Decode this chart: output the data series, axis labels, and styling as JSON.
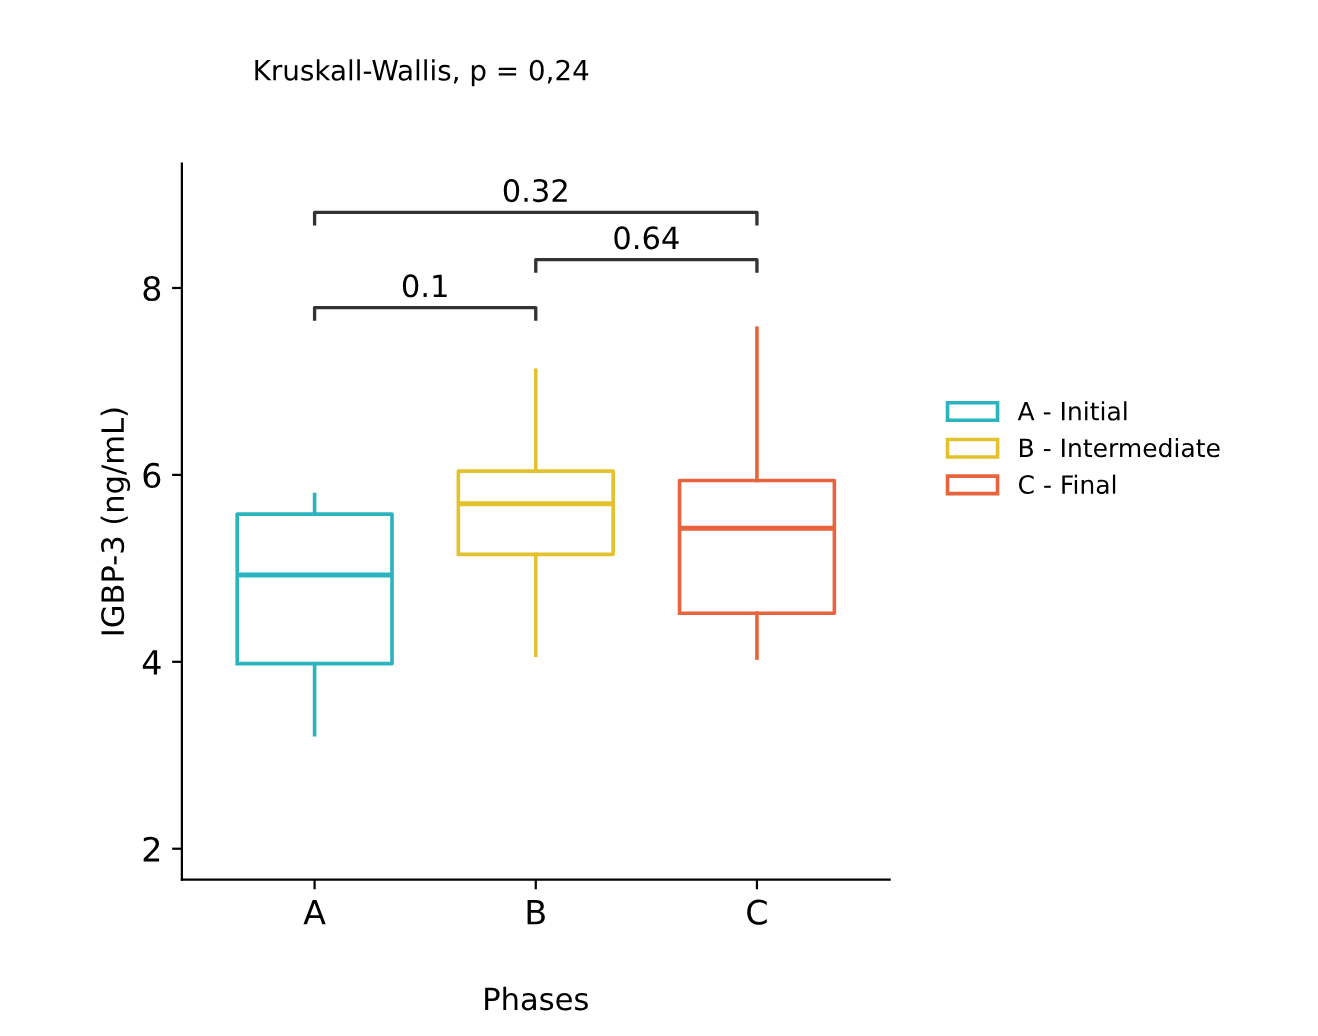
{
  "chart_data": {
    "type": "box",
    "title": "Kruskall-Wallis, p = 0,24",
    "xlabel": "Phases",
    "ylabel": "IGBP-3 (ng/mL)",
    "categories": [
      "A",
      "B",
      "C"
    ],
    "series": [
      {
        "name": "A - Initial",
        "color": "#2bb3c0",
        "boxes": [
          {
            "low": 3.22,
            "q1": 3.98,
            "median": 4.93,
            "q3": 5.58,
            "high": 5.79
          },
          null,
          null
        ]
      },
      {
        "name": "B - Intermediate",
        "color": "#e3c12f",
        "boxes": [
          null,
          {
            "low": 4.07,
            "q1": 5.15,
            "median": 5.69,
            "q3": 6.04,
            "high": 7.12
          },
          null
        ]
      },
      {
        "name": "C - Final",
        "color": "#e8643c",
        "boxes": [
          null,
          null,
          {
            "low": 4.04,
            "q1": 4.52,
            "median": 5.43,
            "q3": 5.94,
            "high": 7.57
          }
        ]
      }
    ],
    "annotations": [
      "0.1",
      "0.64",
      "0.32"
    ],
    "ylim": [
      1.67,
      9.33
    ],
    "yticks": [
      2,
      4,
      6,
      8
    ],
    "grid": false,
    "legend": "right"
  }
}
